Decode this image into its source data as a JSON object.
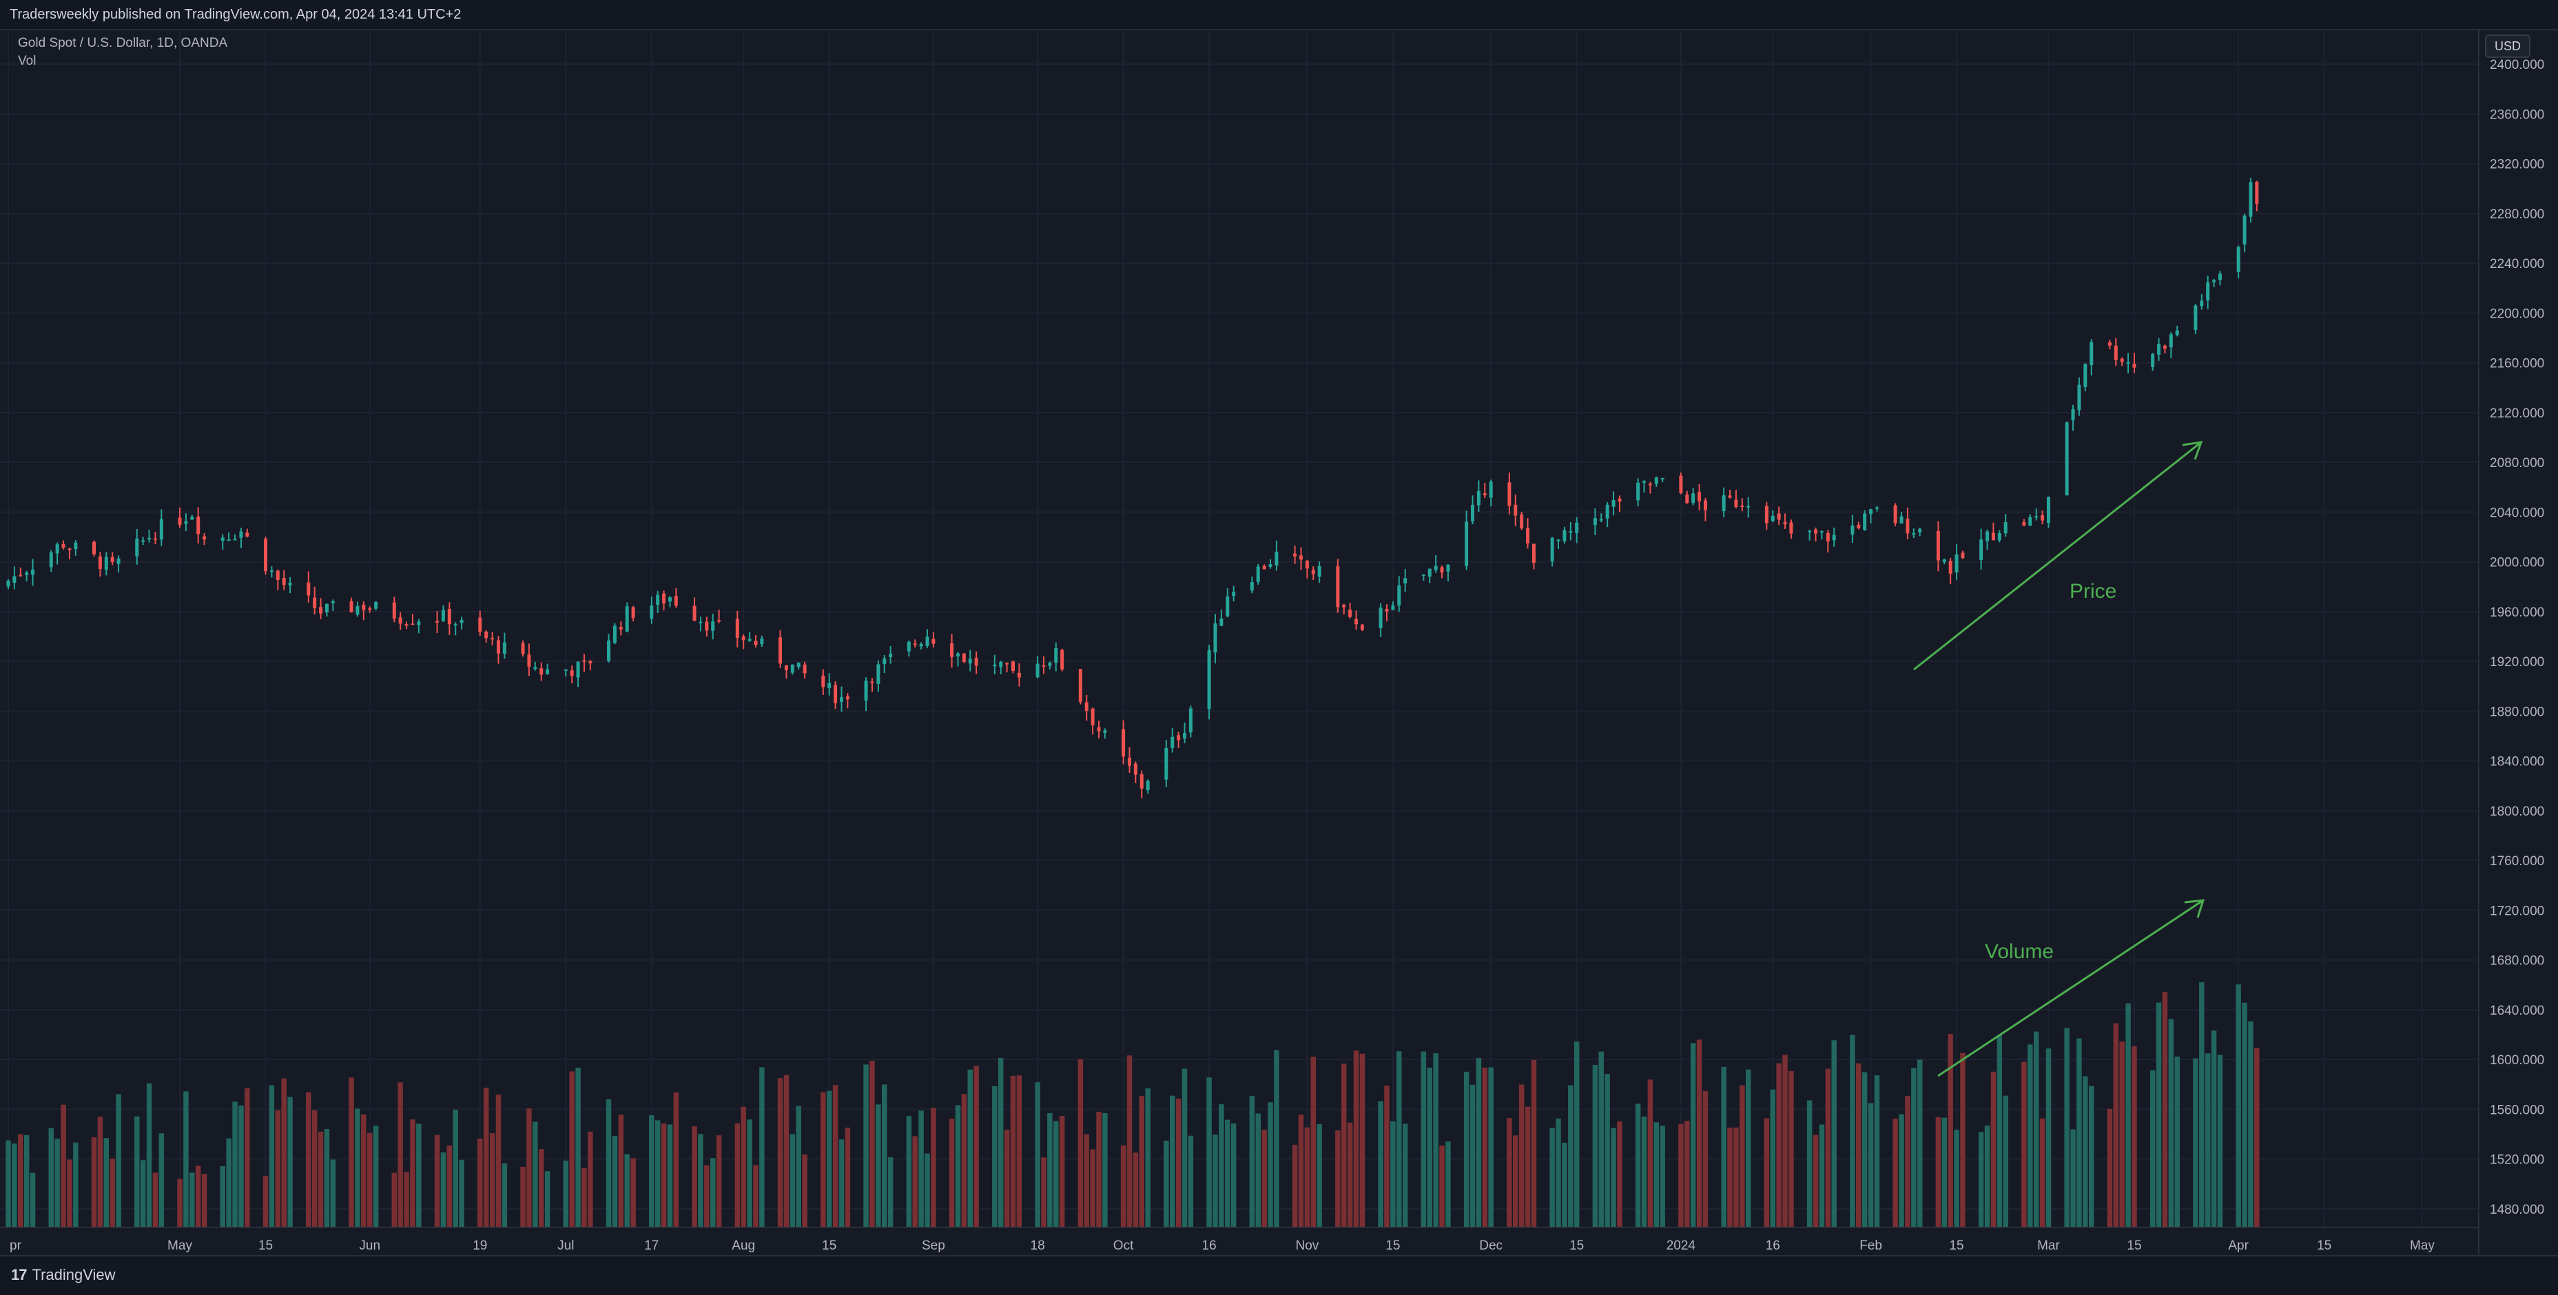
{
  "header": {
    "publisher_line": "Tradersweekly published on TradingView.com, Apr 04, 2024 13:41 UTC+2"
  },
  "legend": {
    "symbol_line": "Gold Spot / U.S. Dollar, 1D, OANDA",
    "indicator": "Vol"
  },
  "currency_button": "USD",
  "annotations": {
    "price_label": "Price",
    "volume_label": "Volume",
    "arrow_color": "#4caf50"
  },
  "brand": {
    "mark": "17",
    "name": "TradingView"
  },
  "colors": {
    "up": "#26a69a",
    "down": "#ef5350",
    "volume_up": "#22665e",
    "volume_down": "#7a2f33",
    "grid": "#1f2331",
    "background": "#161a25"
  },
  "chart_data": {
    "type": "candlestick",
    "price_axis": {
      "ticks": [
        "1480.000",
        "1520.000",
        "1560.000",
        "1600.000",
        "1640.000",
        "1680.000",
        "1720.000",
        "1760.000",
        "1800.000",
        "1840.000",
        "1880.000",
        "1920.000",
        "1960.000",
        "2000.000",
        "2040.000",
        "2080.000",
        "2120.000",
        "2160.000",
        "2200.000",
        "2240.000",
        "2280.000",
        "2320.000",
        "2360.000",
        "2400.000"
      ],
      "range": [
        1465,
        2410
      ]
    },
    "time_axis": {
      "labels": [
        "pr",
        "May",
        "15",
        "Jun",
        "19",
        "Jul",
        "17",
        "Aug",
        "15",
        "Sep",
        "18",
        "Oct",
        "16",
        "Nov",
        "15",
        "Dec",
        "15",
        "2024",
        "16",
        "Feb",
        "15",
        "Mar",
        "15",
        "Apr",
        "15",
        "May"
      ],
      "start_date": "2023-04-03",
      "end_date": "2024-05-10"
    },
    "closes": [
      {
        "date": "2023-04-03",
        "close": 1985
      },
      {
        "date": "2023-04-12",
        "close": 2015
      },
      {
        "date": "2023-04-20",
        "close": 1995
      },
      {
        "date": "2023-04-27",
        "close": 2025
      },
      {
        "date": "2023-05-03",
        "close": 2040
      },
      {
        "date": "2023-05-05",
        "close": 2018
      },
      {
        "date": "2023-05-11",
        "close": 2025
      },
      {
        "date": "2023-05-17",
        "close": 1985
      },
      {
        "date": "2023-05-24",
        "close": 1960
      },
      {
        "date": "2023-05-31",
        "close": 1965
      },
      {
        "date": "2023-06-07",
        "close": 1955
      },
      {
        "date": "2023-06-14",
        "close": 1955
      },
      {
        "date": "2023-06-21",
        "close": 1935
      },
      {
        "date": "2023-06-29",
        "close": 1912
      },
      {
        "date": "2023-07-06",
        "close": 1915
      },
      {
        "date": "2023-07-13",
        "close": 1958
      },
      {
        "date": "2023-07-20",
        "close": 1972
      },
      {
        "date": "2023-07-27",
        "close": 1948
      },
      {
        "date": "2023-08-03",
        "close": 1935
      },
      {
        "date": "2023-08-10",
        "close": 1912
      },
      {
        "date": "2023-08-17",
        "close": 1890
      },
      {
        "date": "2023-08-24",
        "close": 1918
      },
      {
        "date": "2023-08-31",
        "close": 1942
      },
      {
        "date": "2023-09-07",
        "close": 1920
      },
      {
        "date": "2023-09-14",
        "close": 1910
      },
      {
        "date": "2023-09-21",
        "close": 1925
      },
      {
        "date": "2023-09-28",
        "close": 1865
      },
      {
        "date": "2023-10-05",
        "close": 1820
      },
      {
        "date": "2023-10-12",
        "close": 1868
      },
      {
        "date": "2023-10-19",
        "close": 1975
      },
      {
        "date": "2023-10-27",
        "close": 2005
      },
      {
        "date": "2023-11-03",
        "close": 1990
      },
      {
        "date": "2023-11-10",
        "close": 1940
      },
      {
        "date": "2023-11-17",
        "close": 1982
      },
      {
        "date": "2023-11-24",
        "close": 2000
      },
      {
        "date": "2023-12-01",
        "close": 2070
      },
      {
        "date": "2023-12-08",
        "close": 2005
      },
      {
        "date": "2023-12-15",
        "close": 2025
      },
      {
        "date": "2023-12-22",
        "close": 2050
      },
      {
        "date": "2023-12-28",
        "close": 2065
      },
      {
        "date": "2024-01-05",
        "close": 2045
      },
      {
        "date": "2024-01-12",
        "close": 2050
      },
      {
        "date": "2024-01-19",
        "close": 2022
      },
      {
        "date": "2024-01-26",
        "close": 2020
      },
      {
        "date": "2024-02-02",
        "close": 2040
      },
      {
        "date": "2024-02-09",
        "close": 2025
      },
      {
        "date": "2024-02-14",
        "close": 1995
      },
      {
        "date": "2024-02-22",
        "close": 2028
      },
      {
        "date": "2024-02-29",
        "close": 2035
      },
      {
        "date": "2024-03-05",
        "close": 2125
      },
      {
        "date": "2024-03-08",
        "close": 2180
      },
      {
        "date": "2024-03-15",
        "close": 2158
      },
      {
        "date": "2024-03-21",
        "close": 2180
      },
      {
        "date": "2024-03-28",
        "close": 2225
      },
      {
        "date": "2024-04-01",
        "close": 2258
      },
      {
        "date": "2024-04-03",
        "close": 2300
      },
      {
        "date": "2024-04-04",
        "close": 2292
      }
    ],
    "volume_series": "colored by candle direction; rising sharply into April 2024"
  }
}
